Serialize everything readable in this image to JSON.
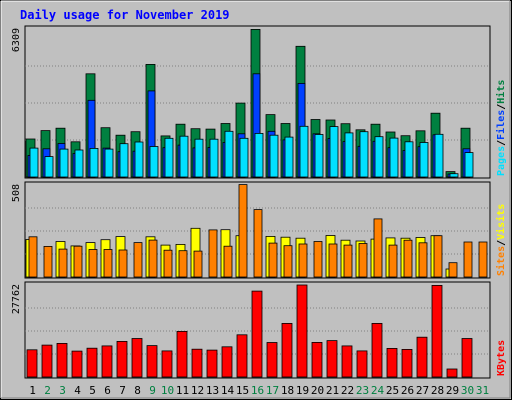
{
  "chart_data": {
    "type": "bar",
    "title": "Daily usage for November 2019",
    "colors": {
      "background": "#c0c0c0",
      "title": "#0000ff",
      "hits": "#008040",
      "files": "#0040ff",
      "pages": "#00e0ff",
      "visits": "#ffff00",
      "sites": "#ff8000",
      "kbytes": "#ff0000",
      "weekday_label": "#000000",
      "weekend_label": "#008040"
    },
    "categories": [
      "1",
      "2",
      "3",
      "4",
      "5",
      "6",
      "7",
      "8",
      "9",
      "10",
      "11",
      "12",
      "13",
      "14",
      "15",
      "16",
      "17",
      "18",
      "19",
      "20",
      "21",
      "22",
      "23",
      "24",
      "25",
      "26",
      "27",
      "28",
      "29",
      "30",
      "31"
    ],
    "weekend_days": [
      "2",
      "3",
      "9",
      "10",
      "16",
      "17",
      "23",
      "24",
      "30",
      "31"
    ],
    "panels": [
      {
        "id": "hits-files-pages",
        "ymax_label": "6309",
        "ylim": [
          0,
          6309
        ],
        "legend": [
          "Pages",
          "/",
          "Files",
          "/",
          "Hits"
        ],
        "series": [
          {
            "name": "Hits",
            "values": [
              1620,
              1980,
              2080,
              1500,
              4400,
              2100,
              1780,
              1930,
              4800,
              1750,
              2250,
              2060,
              2040,
              2280,
              3150,
              6290,
              2660,
              2280,
              5570,
              2450,
              2430,
              2270,
              2010,
              2250,
              1920,
              1760,
              1970,
              2720,
              230,
              2080,
              0
            ]
          },
          {
            "name": "Files",
            "values": [
              920,
              1200,
              1430,
              1000,
              3270,
              1230,
              1080,
              1100,
              3670,
              1250,
              1360,
              1240,
              1260,
              1470,
              1840,
              4400,
              1950,
              1580,
              3990,
              1840,
              1640,
              1510,
              1310,
              1520,
              1250,
              1130,
              1290,
              1800,
              130,
              1200,
              0
            ]
          },
          {
            "name": "Pages",
            "values": [
              1230,
              870,
              1190,
              1150,
              1220,
              1190,
              1420,
              1490,
              1300,
              1650,
              1740,
              1610,
              1610,
              1950,
              1650,
              1860,
              1780,
              1700,
              2160,
              1810,
              2150,
              1880,
              1930,
              1720,
              1660,
              1500,
              1470,
              1820,
              140,
              1040,
              0
            ]
          }
        ]
      },
      {
        "id": "visits-sites",
        "ymax_label": "508",
        "ylim": [
          0,
          508
        ],
        "legend": [
          "Sites",
          "/",
          "Visits"
        ],
        "series": [
          {
            "name": "Visits",
            "values": [
              207,
              0,
              196,
              172,
              190,
              206,
              223,
              0,
              222,
              176,
              180,
              269,
              0,
              261,
              228,
              0,
              224,
              220,
              214,
              0,
              229,
              203,
              199,
              209,
              216,
              214,
              218,
              228,
              44,
              0,
              0
            ]
          },
          {
            "name": "Sites",
            "values": [
              222,
              169,
              154,
              170,
              152,
              152,
              149,
              190,
              204,
              148,
              145,
              143,
              260,
              170,
              510,
              372,
              187,
              173,
              182,
              196,
              182,
              176,
              185,
              321,
              176,
              203,
              189,
              228,
              79,
              193,
              193
            ]
          }
        ]
      },
      {
        "id": "kbytes",
        "ymax_label": "27762",
        "ylim": [
          0,
          27762
        ],
        "legend": [
          "KBytes"
        ],
        "series": [
          {
            "name": "KBytes",
            "values": [
              8210,
              9620,
              10140,
              7830,
              8700,
              9380,
              10730,
              11630,
              9480,
              7880,
              13750,
              8400,
              8130,
              9110,
              12740,
              25920,
              10410,
              16170,
              27760,
              10450,
              10970,
              9390,
              7880,
              16160,
              8620,
              8320,
              12000,
              27640,
              2400,
              11630,
              0
            ]
          }
        ]
      }
    ]
  }
}
